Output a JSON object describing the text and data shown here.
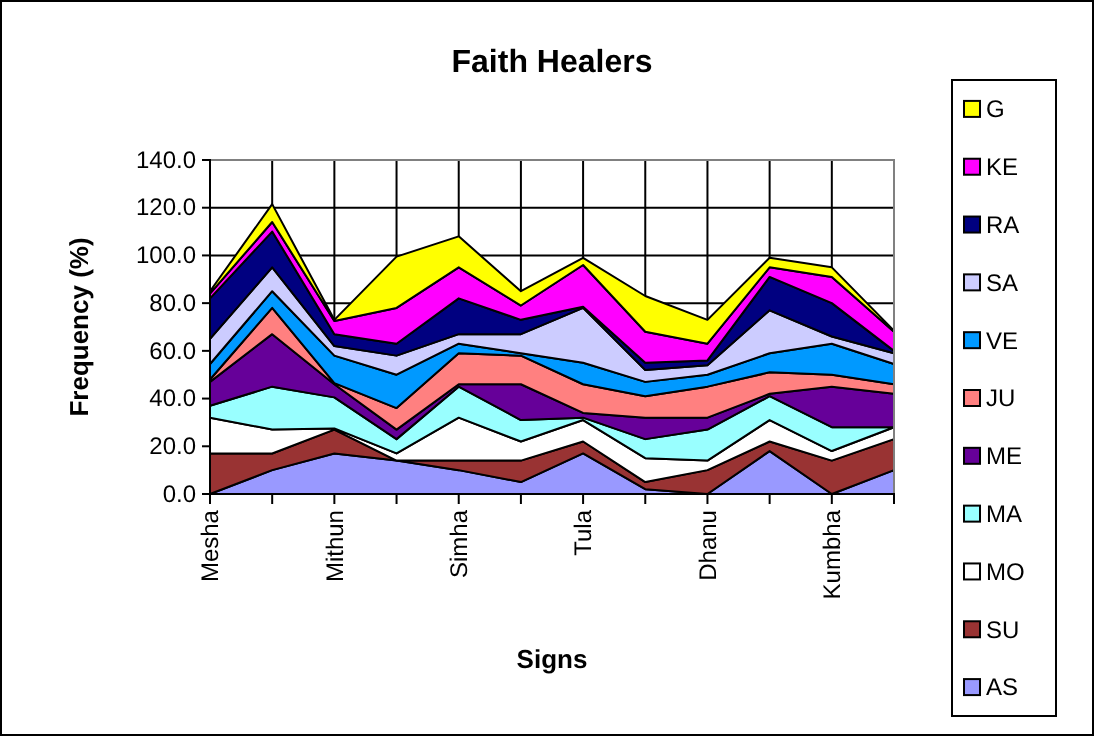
{
  "chart_data": {
    "type": "area",
    "title": "Faith Healers",
    "xlabel": "Signs",
    "ylabel": "Frequency (%)",
    "stacked": true,
    "grid": true,
    "legend": "right",
    "categories": [
      "Mesha",
      null,
      "Mithun",
      null,
      "Simha",
      null,
      "Tula",
      null,
      "Dhanu",
      null,
      "Kumbha",
      null
    ],
    "ylim": [
      0,
      140
    ],
    "yticks": [
      {
        "value": 0,
        "label": "0.0"
      },
      {
        "value": 20,
        "label": "20.0"
      },
      {
        "value": 40,
        "label": "40.0"
      },
      {
        "value": 60,
        "label": "60.0"
      },
      {
        "value": 80,
        "label": "80.0"
      },
      {
        "value": 100,
        "label": "100.0"
      },
      {
        "value": 120,
        "label": "120.0"
      },
      {
        "value": 140,
        "label": "140.0"
      }
    ],
    "series": [
      {
        "name": "AS",
        "color": "#9999ff",
        "values": [
          0,
          10,
          17,
          14,
          10,
          5,
          17,
          2,
          0,
          18,
          0,
          10
        ]
      },
      {
        "name": "SU",
        "color": "#993333",
        "values": [
          17,
          7,
          10,
          0,
          4,
          9,
          5,
          3,
          10,
          4,
          14,
          13
        ]
      },
      {
        "name": "MO",
        "color": "#ffffff",
        "values": [
          15,
          10,
          0.5,
          3,
          18,
          8,
          9,
          10,
          4,
          9,
          4,
          5
        ]
      },
      {
        "name": "MA",
        "color": "#99ffff",
        "values": [
          5,
          18,
          13,
          6,
          13,
          9,
          1,
          8,
          13,
          10,
          10,
          0
        ]
      },
      {
        "name": "ME",
        "color": "#660099",
        "values": [
          10,
          22,
          5.5,
          4,
          1,
          15,
          2,
          9,
          5,
          1,
          17,
          14
        ]
      },
      {
        "name": "JU",
        "color": "#ff8080",
        "values": [
          1,
          11,
          0.5,
          9,
          13,
          12,
          12,
          9,
          13,
          9,
          5,
          4
        ]
      },
      {
        "name": "VE",
        "color": "#0099ff",
        "values": [
          6.5,
          7,
          11.5,
          14,
          4,
          1,
          9,
          6,
          5,
          8,
          13,
          8.5
        ]
      },
      {
        "name": "SA",
        "color": "#ccccff",
        "values": [
          10.5,
          10,
          4,
          8,
          4,
          8,
          23,
          5,
          4,
          18,
          3,
          4.5
        ]
      },
      {
        "name": "RA",
        "color": "#000080",
        "values": [
          17,
          15,
          5,
          5,
          15,
          6,
          0.5,
          3,
          2,
          14,
          14,
          1
        ]
      },
      {
        "name": "KE",
        "color": "#ff00ff",
        "values": [
          2,
          4,
          5.5,
          15,
          13,
          6,
          17.5,
          13,
          7,
          4,
          11,
          8
        ]
      },
      {
        "name": "G",
        "color": "#ffff00",
        "values": [
          1,
          7.5,
          0.5,
          21.5,
          13,
          6,
          3,
          15,
          10,
          4,
          4,
          0.5
        ]
      }
    ]
  }
}
